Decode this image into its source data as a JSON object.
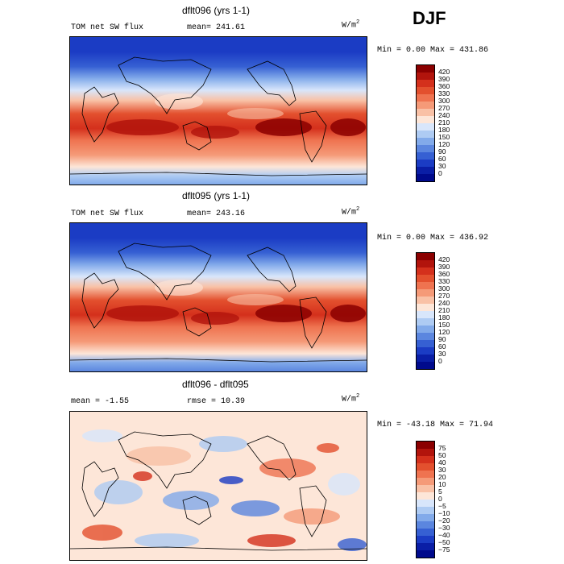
{
  "season": "DJF",
  "panels": [
    {
      "title": "dflt096 (yrs 1-1)",
      "left_label": "TOM net SW flux",
      "stat_label": "mean= 241.61",
      "units_base": "W/m",
      "units_exp": "2",
      "range_label": "Min =    0.00 Max = 431.86",
      "type": "field",
      "colorbar_ticks": [
        "420",
        "390",
        "360",
        "330",
        "300",
        "270",
        "240",
        "210",
        "180",
        "150",
        "120",
        "90",
        "60",
        "30",
        "0"
      ]
    },
    {
      "title": "dflt095 (yrs 1-1)",
      "left_label": "TOM net SW flux",
      "stat_label": "mean= 243.16",
      "units_base": "W/m",
      "units_exp": "2",
      "range_label": "Min =    0.00 Max = 436.92",
      "type": "field",
      "colorbar_ticks": [
        "420",
        "390",
        "360",
        "330",
        "300",
        "270",
        "240",
        "210",
        "180",
        "150",
        "120",
        "90",
        "60",
        "30",
        "0"
      ]
    },
    {
      "title": "dflt096 - dflt095",
      "left_label": "mean =   -1.55",
      "stat_label": "rmse =  10.39",
      "units_base": "W/m",
      "units_exp": "2",
      "range_label": "Min = -43.18 Max =  71.94",
      "type": "diff",
      "colorbar_ticks": [
        "75",
        "50",
        "40",
        "30",
        "20",
        "10",
        "5",
        "0",
        "−5",
        "−10",
        "−20",
        "−30",
        "−40",
        "−50",
        "−75"
      ]
    }
  ],
  "colors": {
    "field_scale": [
      "#8b0000",
      "#b2140c",
      "#d4301c",
      "#e3502e",
      "#ef7350",
      "#f59a78",
      "#f9c1a6",
      "#fde6d8",
      "#d8e6fb",
      "#aecbf3",
      "#82aaea",
      "#5b86df",
      "#3660d3",
      "#1b3cc4",
      "#0a1ea6",
      "#000a8c"
    ],
    "diff_scale": [
      "#8b0000",
      "#b2140c",
      "#d4301c",
      "#e3502e",
      "#ef7350",
      "#f59a78",
      "#f9c1a6",
      "#fde6d8",
      "#d8e6fb",
      "#aecbf3",
      "#82aaea",
      "#5b86df",
      "#3660d3",
      "#1b3cc4",
      "#0a1ea6",
      "#000a8c"
    ]
  }
}
